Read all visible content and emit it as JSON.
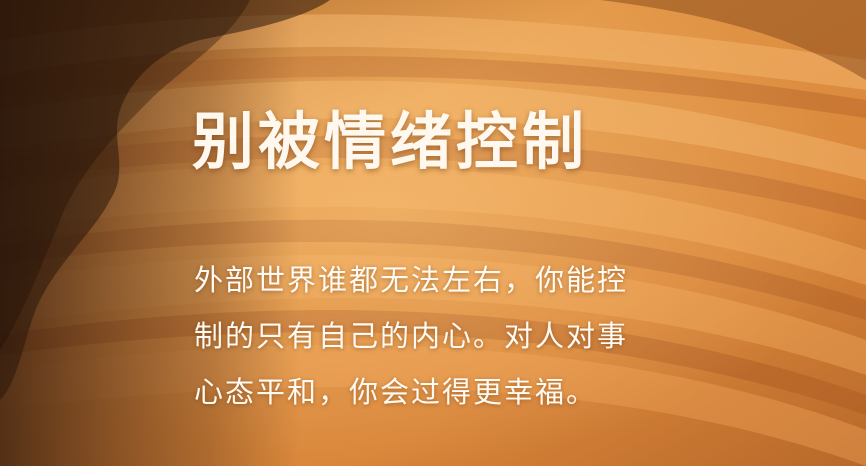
{
  "poster": {
    "title": "别被情绪控制",
    "body_lines": [
      "外部世界谁都无法左右，你能控",
      "制的只有自己的内心。对人对事",
      "心态平和，你会过得更幸福。"
    ]
  },
  "colors": {
    "sand_light": "#f2a85a",
    "sand_mid": "#d98a3c",
    "sand_shadow": "#8a4a1c",
    "text": "#fff8ee"
  }
}
